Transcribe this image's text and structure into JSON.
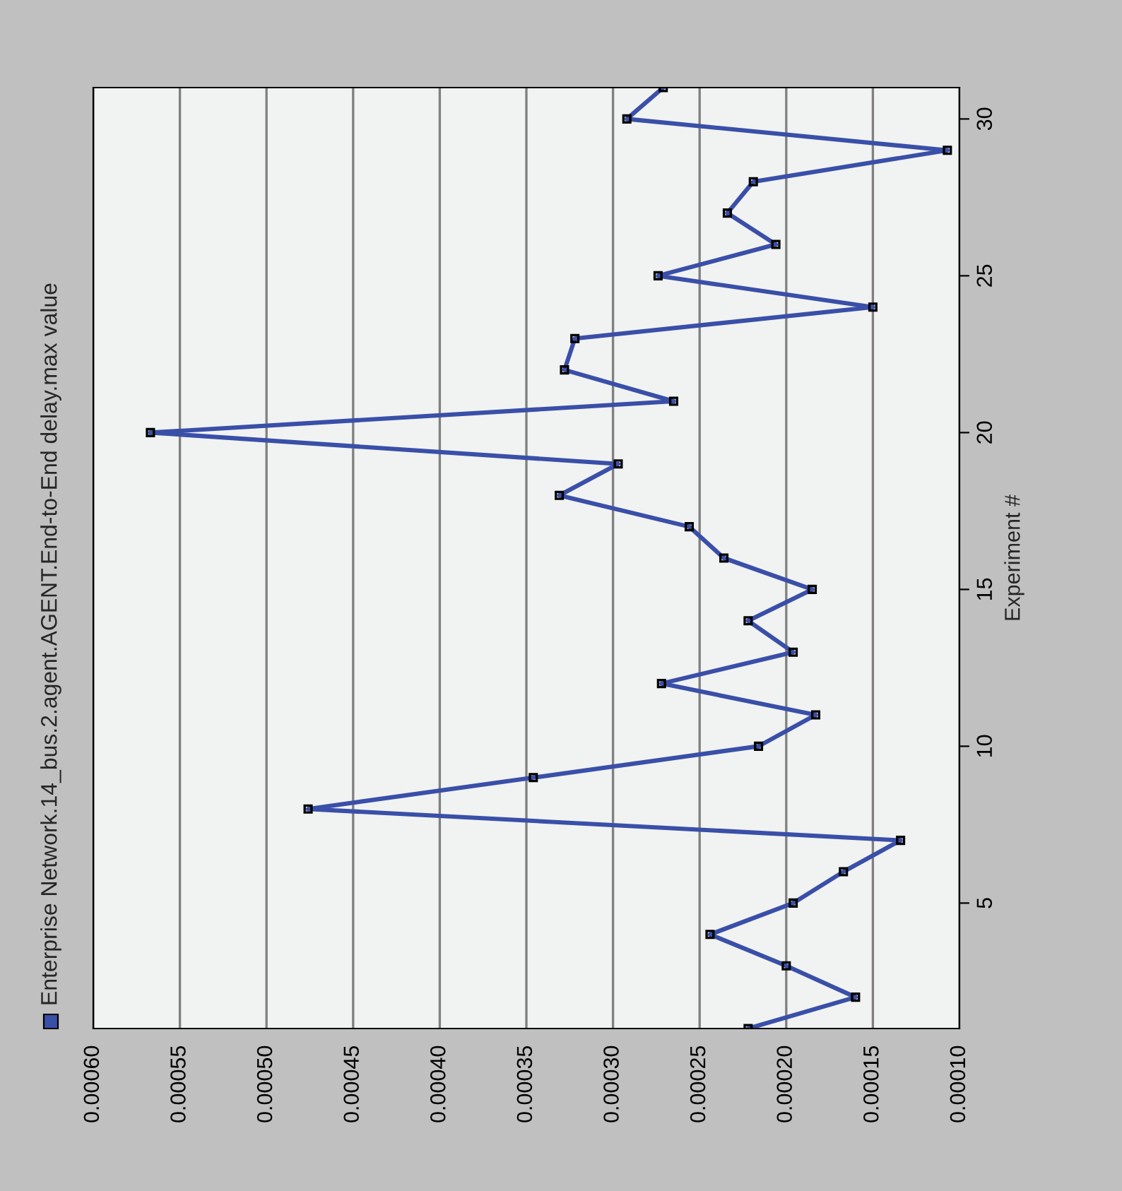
{
  "chart_data": {
    "type": "line",
    "orientation": "horizontal",
    "ylabel": "Experiment #",
    "x": [
      1,
      2,
      3,
      4,
      5,
      6,
      7,
      8,
      9,
      10,
      11,
      12,
      13,
      14,
      15,
      16,
      17,
      18,
      19,
      20,
      21,
      22,
      23,
      24,
      25,
      26,
      27,
      28,
      29,
      30,
      31
    ],
    "series": [
      {
        "name": "Enterprise Network.14_bus.2.agent.AGENT.End-to-End delay.max value",
        "color": "#3a4fa8",
        "values": [
          0.000222,
          0.00016,
          0.0002,
          0.000244,
          0.000196,
          0.000167,
          0.000134,
          0.000476,
          0.000346,
          0.000216,
          0.000183,
          0.000272,
          0.000196,
          0.000222,
          0.000185,
          0.000236,
          0.000256,
          0.000331,
          0.000297,
          0.000567,
          0.000265,
          0.000328,
          0.000322,
          0.00015,
          0.000274,
          0.000206,
          0.000234,
          0.000219,
          0.000107,
          0.000292,
          0.000271
        ]
      }
    ],
    "xlim": [
      0.0006,
      0.0001
    ],
    "xticks": [
      {
        "value": 0.0006,
        "label": "0.00060"
      },
      {
        "value": 0.00055,
        "label": "0.00055"
      },
      {
        "value": 0.0005,
        "label": "0.00050"
      },
      {
        "value": 0.00045,
        "label": "0.00045"
      },
      {
        "value": 0.0004,
        "label": "0.00040"
      },
      {
        "value": 0.00035,
        "label": "0.00035"
      },
      {
        "value": 0.0003,
        "label": "0.00030"
      },
      {
        "value": 0.00025,
        "label": "0.00025"
      },
      {
        "value": 0.0002,
        "label": "0.00020"
      },
      {
        "value": 0.00015,
        "label": "0.00015"
      },
      {
        "value": 0.0001,
        "label": "0.00010"
      }
    ],
    "ylim": [
      1,
      31
    ],
    "yticks": [
      5,
      10,
      15,
      20,
      25,
      30
    ],
    "grid": "x",
    "legend": "left",
    "marker": "square",
    "line_style": "solid"
  }
}
